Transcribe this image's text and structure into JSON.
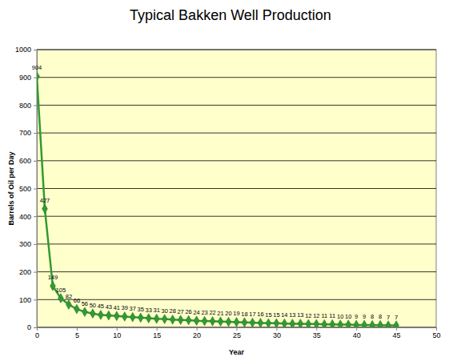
{
  "chart_data": {
    "type": "line",
    "title": "Typical Bakken Well Production",
    "x_label": "Year",
    "y_label": "Barrels of Oil per Day",
    "x": [
      0,
      1,
      2,
      3,
      4,
      5,
      6,
      7,
      8,
      9,
      10,
      11,
      12,
      13,
      14,
      15,
      16,
      17,
      18,
      19,
      20,
      21,
      22,
      23,
      24,
      25,
      26,
      27,
      28,
      29,
      30,
      31,
      32,
      33,
      34,
      35,
      36,
      37,
      38,
      39,
      40,
      41,
      42,
      43,
      44,
      45
    ],
    "values": [
      904,
      427,
      149,
      105,
      82,
      66,
      56,
      50,
      45,
      43,
      41,
      39,
      37,
      35,
      33,
      31,
      30,
      28,
      27,
      26,
      24,
      23,
      22,
      21,
      20,
      19,
      18,
      17,
      16,
      15,
      15,
      14,
      13,
      13,
      12,
      12,
      11,
      11,
      10,
      10,
      9,
      9,
      8,
      8,
      7,
      7
    ],
    "color": "#339933",
    "marker": "diamond",
    "line_style": "solid",
    "data_labels": true,
    "xlim": [
      0,
      50
    ],
    "xticks": [
      0,
      5,
      10,
      15,
      20,
      25,
      30,
      35,
      40,
      45,
      50
    ],
    "ylim": [
      0,
      1000
    ],
    "yticks": [
      0,
      100,
      200,
      300,
      400,
      500,
      600,
      700,
      800,
      900,
      1000
    ],
    "grid": true
  }
}
